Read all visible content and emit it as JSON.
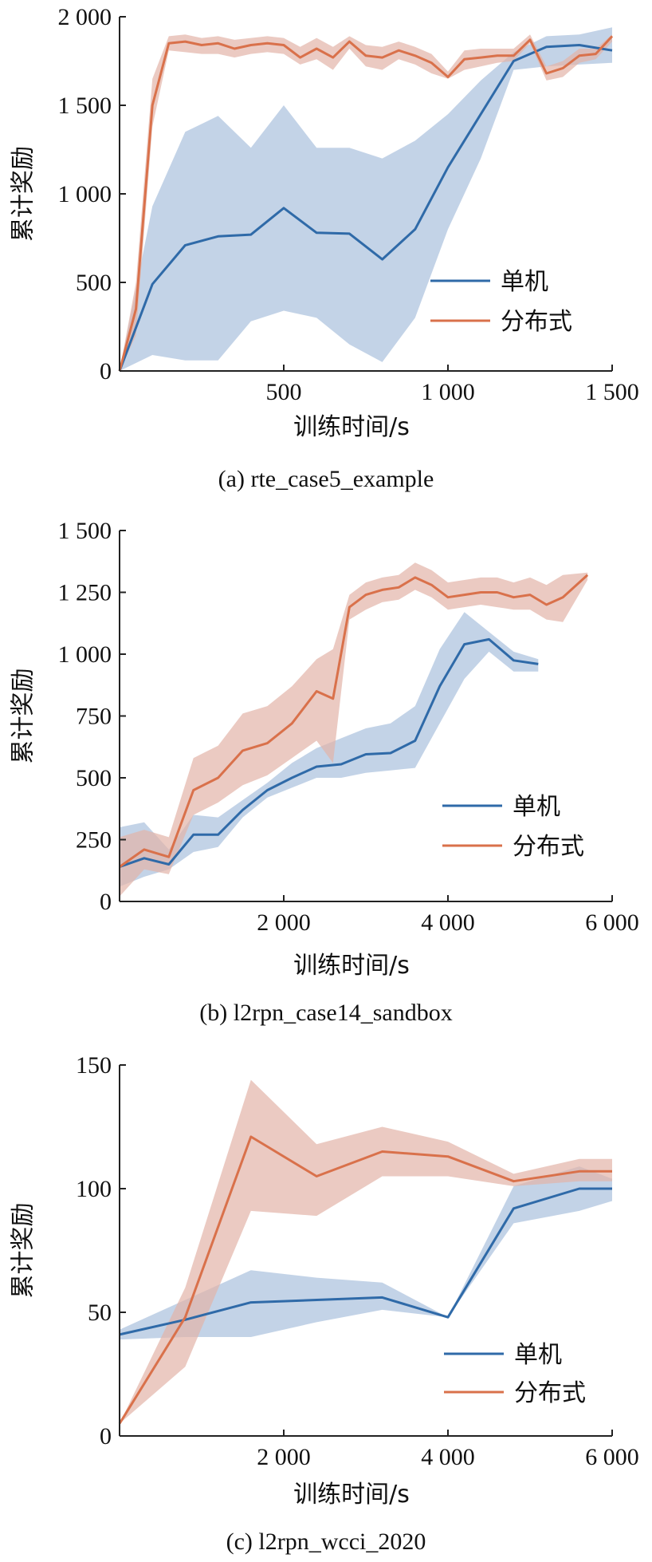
{
  "chart_data": [
    {
      "type": "line",
      "caption": "(a) rte_case5_example",
      "xlabel": "训练时间/s",
      "ylabel": "累计奖励",
      "xlim": [
        0,
        1500
      ],
      "ylim": [
        0,
        2000
      ],
      "xticks": [
        500,
        1000,
        1500
      ],
      "xtick_labels": [
        "500",
        "1 000",
        "1 500"
      ],
      "yticks": [
        0,
        500,
        1000,
        1500,
        2000
      ],
      "ytick_labels": [
        "0",
        "500",
        "1 000",
        "1 500",
        "2 000"
      ],
      "legend_position": "lower-right",
      "series": [
        {
          "name": "单机",
          "color": "#2f6aa8",
          "band_color": "#a9c0dd",
          "x": [
            0,
            100,
            200,
            300,
            400,
            500,
            600,
            700,
            800,
            900,
            1000,
            1100,
            1200,
            1300,
            1400,
            1500
          ],
          "y": [
            0,
            490,
            710,
            760,
            770,
            920,
            780,
            775,
            630,
            800,
            1150,
            1450,
            1750,
            1830,
            1840,
            1810
          ],
          "lower": [
            0,
            90,
            60,
            60,
            280,
            340,
            300,
            150,
            50,
            300,
            800,
            1200,
            1700,
            1720,
            1730,
            1740
          ],
          "upper": [
            0,
            930,
            1350,
            1440,
            1260,
            1500,
            1260,
            1260,
            1200,
            1300,
            1450,
            1640,
            1800,
            1890,
            1900,
            1940
          ]
        },
        {
          "name": "分布式",
          "color": "#d9714b",
          "band_color": "#e3b3a8",
          "x": [
            0,
            50,
            100,
            150,
            200,
            250,
            300,
            350,
            400,
            450,
            500,
            550,
            600,
            650,
            700,
            750,
            800,
            850,
            900,
            950,
            1000,
            1050,
            1100,
            1150,
            1200,
            1250,
            1300,
            1350,
            1400,
            1450,
            1500
          ],
          "y": [
            0,
            350,
            1500,
            1850,
            1860,
            1840,
            1850,
            1820,
            1840,
            1850,
            1840,
            1770,
            1820,
            1770,
            1860,
            1780,
            1770,
            1810,
            1780,
            1740,
            1660,
            1760,
            1770,
            1780,
            1780,
            1870,
            1680,
            1710,
            1780,
            1790,
            1890
          ],
          "lower": [
            0,
            200,
            1380,
            1810,
            1800,
            1790,
            1790,
            1770,
            1790,
            1800,
            1790,
            1730,
            1760,
            1700,
            1820,
            1720,
            1700,
            1760,
            1730,
            1680,
            1650,
            1700,
            1720,
            1740,
            1750,
            1850,
            1640,
            1660,
            1740,
            1760,
            1860
          ],
          "upper": [
            0,
            500,
            1650,
            1890,
            1900,
            1880,
            1890,
            1870,
            1880,
            1890,
            1880,
            1830,
            1880,
            1830,
            1890,
            1840,
            1830,
            1860,
            1830,
            1790,
            1690,
            1810,
            1820,
            1820,
            1820,
            1900,
            1720,
            1750,
            1820,
            1820,
            1900
          ]
        }
      ]
    },
    {
      "type": "line",
      "caption": "(b) l2rpn_case14_sandbox",
      "xlabel": "训练时间/s",
      "ylabel": "累计奖励",
      "xlim": [
        0,
        6000
      ],
      "ylim": [
        0,
        1500
      ],
      "xticks": [
        2000,
        4000,
        6000
      ],
      "xtick_labels": [
        "2 000",
        "4 000",
        "6 000"
      ],
      "yticks": [
        0,
        250,
        500,
        750,
        1000,
        1250,
        1500
      ],
      "ytick_labels": [
        "0",
        "250",
        "500",
        "750",
        "1 000",
        "1 250",
        "1 500"
      ],
      "legend_position": "lower-right",
      "series": [
        {
          "name": "单机",
          "color": "#2f6aa8",
          "band_color": "#a9c0dd",
          "x": [
            0,
            300,
            600,
            900,
            1200,
            1500,
            1800,
            2100,
            2400,
            2700,
            3000,
            3300,
            3600,
            3900,
            4200,
            4500,
            4800,
            5100
          ],
          "y": [
            140,
            175,
            150,
            270,
            270,
            370,
            450,
            500,
            545,
            555,
            595,
            600,
            650,
            870,
            1040,
            1060,
            975,
            960
          ],
          "lower": [
            60,
            100,
            130,
            200,
            220,
            340,
            420,
            460,
            500,
            500,
            520,
            530,
            540,
            720,
            900,
            1010,
            930,
            930
          ],
          "upper": [
            300,
            320,
            210,
            350,
            340,
            410,
            480,
            560,
            620,
            660,
            700,
            720,
            790,
            1020,
            1170,
            1090,
            1010,
            980
          ]
        },
        {
          "name": "分布式",
          "color": "#d9714b",
          "band_color": "#e3b3a8",
          "x": [
            0,
            300,
            600,
            900,
            1200,
            1500,
            1800,
            2100,
            2400,
            2600,
            2800,
            3000,
            3200,
            3400,
            3600,
            3800,
            4000,
            4200,
            4400,
            4600,
            4800,
            5000,
            5200,
            5400,
            5700
          ],
          "y": [
            140,
            210,
            180,
            450,
            500,
            610,
            640,
            720,
            850,
            820,
            1190,
            1240,
            1260,
            1270,
            1310,
            1280,
            1230,
            1240,
            1250,
            1250,
            1230,
            1240,
            1200,
            1230,
            1320
          ],
          "lower": [
            20,
            130,
            110,
            350,
            400,
            470,
            510,
            580,
            650,
            560,
            1140,
            1180,
            1210,
            1220,
            1260,
            1230,
            1180,
            1190,
            1200,
            1190,
            1180,
            1180,
            1140,
            1130,
            1300
          ],
          "upper": [
            260,
            290,
            260,
            580,
            630,
            760,
            790,
            870,
            980,
            1020,
            1240,
            1290,
            1310,
            1320,
            1370,
            1340,
            1290,
            1300,
            1310,
            1310,
            1290,
            1310,
            1280,
            1320,
            1330
          ]
        }
      ]
    },
    {
      "type": "line",
      "caption": "(c) l2rpn_wcci_2020",
      "xlabel": "训练时间/s",
      "ylabel": "累计奖励",
      "xlim": [
        0,
        6000
      ],
      "ylim": [
        0,
        150
      ],
      "xticks": [
        2000,
        4000,
        6000
      ],
      "xtick_labels": [
        "2 000",
        "4 000",
        "6 000"
      ],
      "yticks": [
        0,
        50,
        100,
        150
      ],
      "ytick_labels": [
        "0",
        "50",
        "100",
        "150"
      ],
      "legend_position": "lower-right",
      "series": [
        {
          "name": "单机",
          "color": "#2f6aa8",
          "band_color": "#a9c0dd",
          "x": [
            0,
            800,
            1600,
            2400,
            3200,
            4000,
            4800,
            5600,
            6000
          ],
          "y": [
            41,
            47,
            54,
            55,
            56,
            48,
            92,
            100,
            100
          ],
          "lower": [
            39,
            40,
            40,
            46,
            51,
            48,
            86,
            91,
            95
          ],
          "upper": [
            43,
            55,
            67,
            64,
            62,
            48,
            101,
            109,
            104
          ]
        },
        {
          "name": "分布式",
          "color": "#d9714b",
          "band_color": "#e3b3a8",
          "x": [
            0,
            800,
            1600,
            2400,
            3200,
            4000,
            4800,
            5600,
            6000
          ],
          "y": [
            5,
            48,
            121,
            105,
            115,
            113,
            103,
            107,
            107
          ],
          "lower": [
            5,
            28,
            91,
            89,
            105,
            105,
            101,
            103,
            103
          ],
          "upper": [
            5,
            60,
            144,
            118,
            125,
            119,
            106,
            112,
            112
          ]
        }
      ]
    }
  ]
}
